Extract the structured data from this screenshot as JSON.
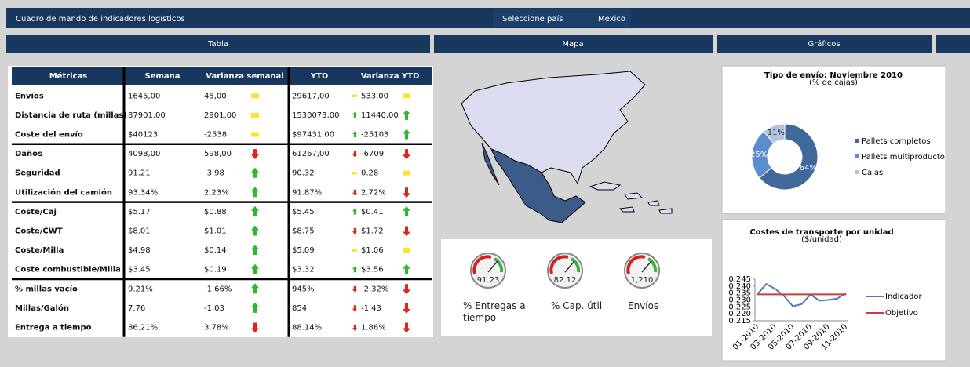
{
  "header": {
    "title": "Cuadro de mando de indicadores logísticos",
    "country_label": "Seleccione país",
    "country": "Mexico"
  },
  "tabs": [
    "Tabla",
    "Mapa",
    "Gráficos"
  ],
  "table": {
    "columns": [
      "Métricas",
      "Semana",
      "Varianza semanal",
      "YTD",
      "Varianza YTD"
    ],
    "rows": [
      [
        "Envíos",
        "1645,00",
        "45,00",
        "29617,00",
        "533,00"
      ],
      [
        "Distancia de ruta (millas)",
        "87901,00",
        "2901,00",
        "1530073,00",
        "11440,00"
      ],
      [
        "Coste del envío",
        "$40123",
        "-2538",
        "$97431,00",
        "-25103"
      ],
      [
        "Daños",
        "4098,00",
        "598,00",
        "61267,00",
        "-6709"
      ],
      [
        "Seguridad",
        "91.21",
        "-3.98",
        "90.32",
        "0.28"
      ],
      [
        "Utilización del camión",
        "93.34%",
        "2.23%",
        "91.87%",
        "2.72%"
      ],
      [
        "Coste/Caj",
        "$5.17",
        "$0.88",
        "$5.45",
        "$0.41"
      ],
      [
        "Coste/CWT",
        "$8.01",
        "$1.01",
        "$8.75",
        "$1.72"
      ],
      [
        "Coste/Milla",
        "$4.98",
        "$0.14",
        "$5.09",
        "$1.06"
      ],
      [
        "Coste combustible/Milla",
        "$3.45",
        "$0.19",
        "$3.32",
        "$3.56"
      ],
      [
        "% millas vacío",
        "9.21%",
        "-1.66%",
        "945%",
        "-2.32%"
      ],
      [
        "Millas/Galón",
        "7.76",
        "-1.03",
        "854",
        "-1.43"
      ],
      [
        "Entrega a tiempo",
        "86.21%",
        "3.78%",
        "88.14%",
        "1.86%"
      ]
    ],
    "icons": [
      [
        "flat",
        "flat"
      ],
      [
        "flat",
        "up"
      ],
      [
        "flat",
        "up"
      ],
      [
        "down",
        "down"
      ],
      [
        "up",
        "flat"
      ],
      [
        "up",
        "down"
      ],
      [
        "up",
        "up"
      ],
      [
        "up",
        "down"
      ],
      [
        "up",
        "flat"
      ],
      [
        "up",
        "up"
      ],
      [
        "up",
        "down"
      ],
      [
        "up",
        "down"
      ],
      [
        "down",
        "down"
      ]
    ]
  },
  "gauges": [
    {
      "label": "% Entregas a tiempo",
      "value_label": "91.23"
    },
    {
      "label": "% Cap. útil",
      "value_label": "82.12"
    },
    {
      "label": "Envíos",
      "value_label": "1,210"
    }
  ],
  "chart_data": [
    {
      "type": "pie",
      "title": "Tipo de envío: Noviembre 2010",
      "subtitle": "(% de cajas)",
      "categories": [
        "Pallets completos",
        "Pallets multiproducto",
        "Cajas"
      ],
      "values": [
        64,
        25,
        11
      ],
      "value_labels": [
        "64%",
        "25%",
        "11%"
      ],
      "colors": [
        "#41689a",
        "#5b8ccd",
        "#b3c2dd"
      ]
    },
    {
      "type": "line",
      "title": "Costes de transporte por unidad",
      "subtitle": "($/unidad)",
      "categories": [
        "01-2010",
        null,
        "03-2010",
        null,
        "05-2010",
        null,
        "07-2010",
        null,
        "09-2010",
        null,
        "11-2010"
      ],
      "series": [
        {
          "name": "Indicador",
          "color": "#4a7ebb",
          "values": [
            0.234,
            0.2415,
            0.238,
            0.233,
            0.2255,
            0.227,
            0.234,
            0.2295,
            0.23,
            0.231,
            0.235
          ]
        },
        {
          "name": "Objetivo",
          "color": "#d23a3a",
          "values": [
            0.234,
            0.234,
            0.234,
            0.234,
            0.234,
            0.234,
            0.234,
            0.234,
            0.234,
            0.234,
            0.234
          ]
        }
      ],
      "ylim": [
        0.215,
        0.245
      ],
      "yticks": [
        0.215,
        {
          "value": 0.22,
          "label": "0.220"
        },
        0.225,
        {
          "value": 0.23,
          "label": "0.230"
        },
        0.235,
        {
          "value": 0.24,
          "label": "0.240"
        },
        0.245
      ]
    }
  ]
}
